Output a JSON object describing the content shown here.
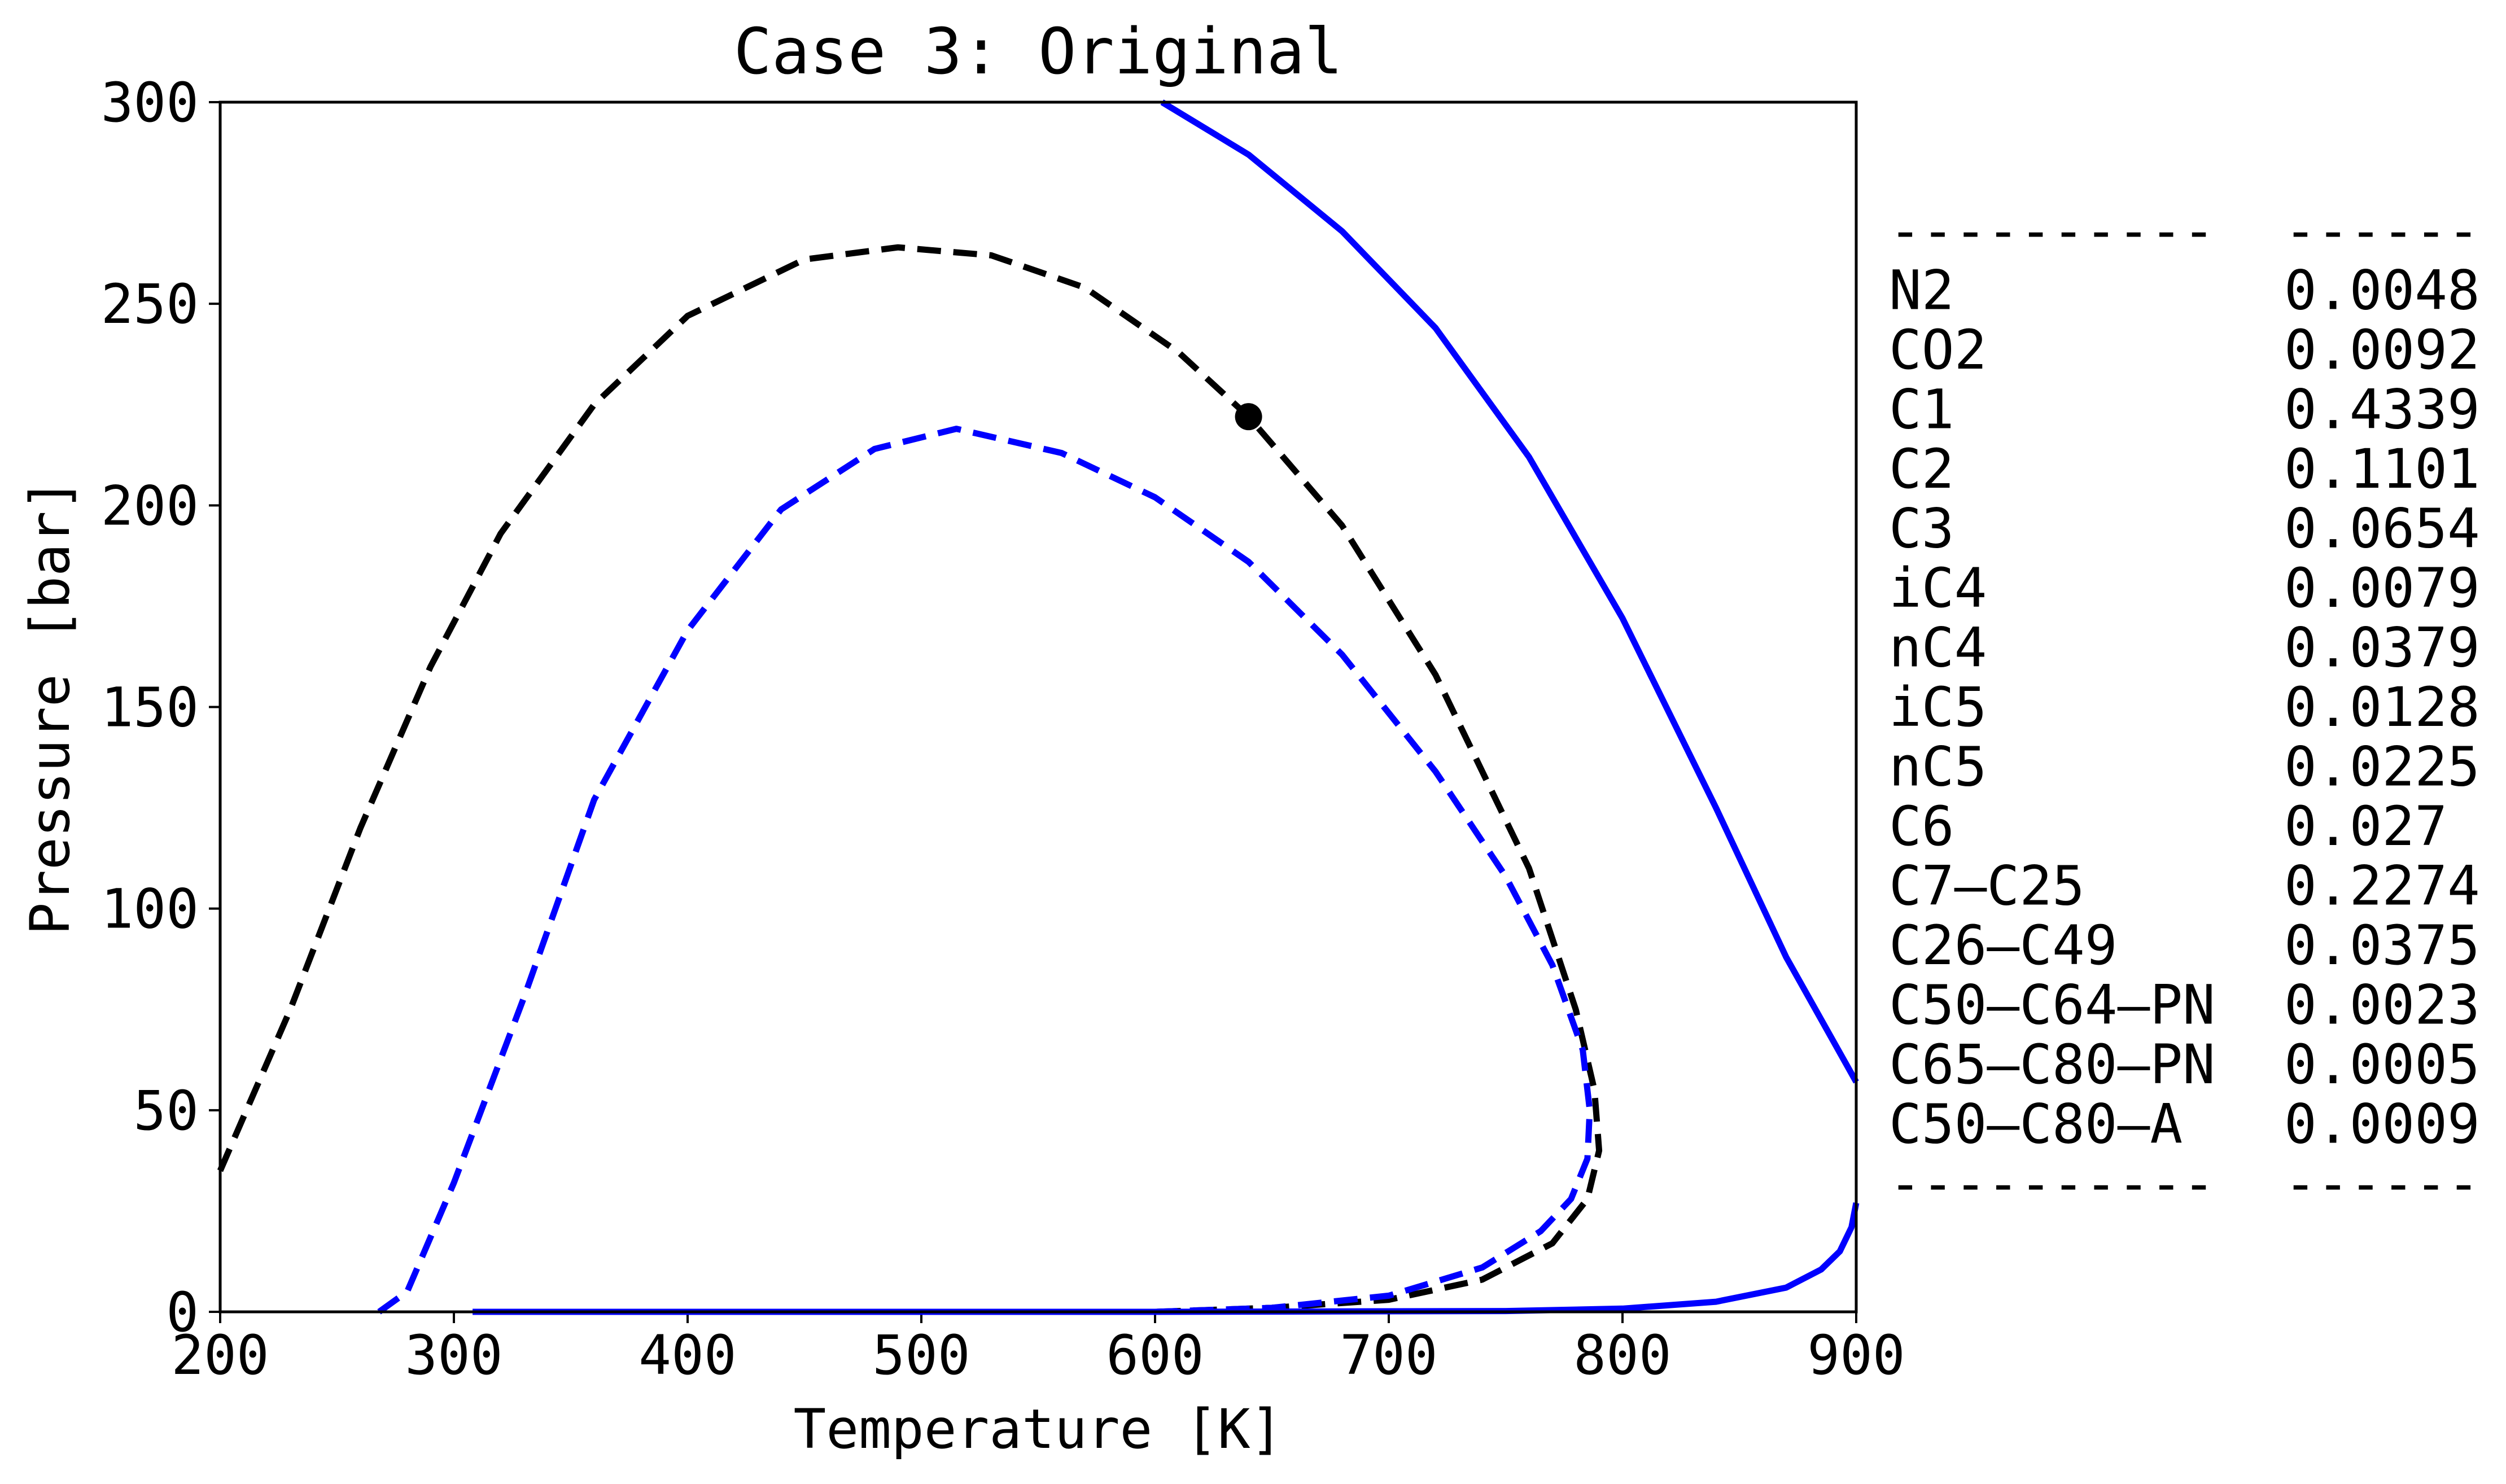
{
  "chart_data": {
    "type": "line",
    "title": "Case 3: Original",
    "xlabel": "Temperature [K]",
    "ylabel": "Pressure [bar]",
    "xlim": [
      200,
      900
    ],
    "ylim": [
      0,
      300
    ],
    "x_ticks": [
      "200",
      "300",
      "400",
      "500",
      "600",
      "700",
      "800",
      "900"
    ],
    "y_ticks": [
      "0",
      "50",
      "100",
      "150",
      "200",
      "250",
      "300"
    ],
    "grid": false,
    "series": [
      {
        "color": "#000000",
        "style": "dashed",
        "points": [
          [
            200,
            35
          ],
          [
            230,
            75
          ],
          [
            260,
            120
          ],
          [
            290,
            160
          ],
          [
            320,
            193
          ],
          [
            360,
            225
          ],
          [
            400,
            247
          ],
          [
            450,
            261
          ],
          [
            490,
            264
          ],
          [
            530,
            262
          ],
          [
            570,
            254
          ],
          [
            610,
            238
          ],
          [
            640,
            222
          ],
          [
            680,
            195
          ],
          [
            720,
            158
          ],
          [
            760,
            110
          ],
          [
            780,
            75
          ],
          [
            788,
            55
          ],
          [
            790,
            40
          ],
          [
            785,
            28
          ],
          [
            770,
            17
          ],
          [
            740,
            8
          ],
          [
            700,
            3
          ],
          [
            650,
            1
          ],
          [
            600,
            0
          ],
          [
            310,
            0
          ]
        ]
      },
      {
        "color": "#0000ff",
        "style": "dashed",
        "points": [
          [
            268,
            0
          ],
          [
            280,
            5
          ],
          [
            300,
            32
          ],
          [
            330,
            78
          ],
          [
            360,
            127
          ],
          [
            400,
            169
          ],
          [
            440,
            199
          ],
          [
            480,
            214
          ],
          [
            515,
            219
          ],
          [
            560,
            213
          ],
          [
            600,
            202
          ],
          [
            640,
            186
          ],
          [
            680,
            163
          ],
          [
            720,
            134
          ],
          [
            750,
            108
          ],
          [
            770,
            86
          ],
          [
            783,
            65
          ],
          [
            786,
            50
          ],
          [
            785,
            38
          ],
          [
            778,
            28
          ],
          [
            765,
            20
          ],
          [
            740,
            11
          ],
          [
            700,
            4
          ],
          [
            650,
            1
          ],
          [
            600,
            0
          ]
        ]
      },
      {
        "color": "#0000ff",
        "style": "solid",
        "points": [
          [
            603,
            300
          ],
          [
            640,
            287
          ],
          [
            680,
            268
          ],
          [
            720,
            244
          ],
          [
            760,
            212
          ],
          [
            800,
            172
          ],
          [
            840,
            125
          ],
          [
            870,
            88
          ],
          [
            900,
            57
          ]
        ]
      },
      {
        "color": "#0000ff",
        "style": "solid",
        "points": [
          [
            308,
            0
          ],
          [
            600,
            0
          ],
          [
            750,
            0.2
          ],
          [
            800,
            0.8
          ],
          [
            840,
            2.5
          ],
          [
            870,
            6
          ],
          [
            885,
            10.5
          ],
          [
            893,
            15
          ],
          [
            898,
            21
          ],
          [
            900,
            27
          ]
        ]
      }
    ],
    "points": [
      {
        "x": 640,
        "y": 222,
        "color": "#000000"
      }
    ],
    "composition_table": {
      "separator": [
        "----------",
        "------"
      ],
      "rows": [
        [
          "N2",
          "0.0048"
        ],
        [
          "CO2",
          "0.0092"
        ],
        [
          "C1",
          "0.4339"
        ],
        [
          "C2",
          "0.1101"
        ],
        [
          "C3",
          "0.0654"
        ],
        [
          "iC4",
          "0.0079"
        ],
        [
          "nC4",
          "0.0379"
        ],
        [
          "iC5",
          "0.0128"
        ],
        [
          "nC5",
          "0.0225"
        ],
        [
          "C6",
          "0.027"
        ],
        [
          "C7–C25",
          "0.2274"
        ],
        [
          "C26–C49",
          "0.0375"
        ],
        [
          "C50–C64–PN",
          "0.0023"
        ],
        [
          "C65–C80–PN",
          "0.0005"
        ],
        [
          "C50–C80–A",
          "0.0009"
        ]
      ]
    }
  }
}
